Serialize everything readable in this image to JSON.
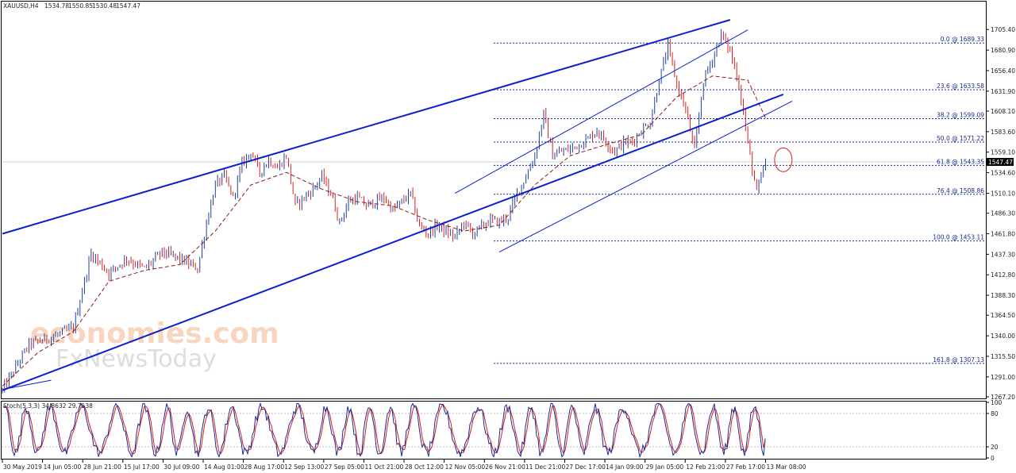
{
  "header": {
    "symbol": "XAUUSD,H4",
    "open": "1534.78",
    "high": "1550.85",
    "low": "1530.48",
    "close": "1547.47"
  },
  "colors": {
    "background": "#ffffff",
    "candle_up": "#1f3f9f",
    "candle_down": "#d42020",
    "moving_average": "#8b1a1a",
    "channel": "#0a1fd0",
    "fib_level": "#1a2a8a",
    "stoch_main": "#1b2a8f",
    "stoch_signal": "#d42020",
    "current_price_tag": "#000000",
    "watermark": "#f4b48a",
    "watermark_sub": "#c8c8c8"
  },
  "watermark": {
    "line1": "economies.com",
    "line2": "FxNewsToday"
  },
  "chart_data": [
    {
      "type": "candlestick",
      "title": "XAUUSD,H4",
      "ylim": [
        1267.2,
        1717.0
      ],
      "y_ticks": [
        "1705.40",
        "1680.90",
        "1656.40",
        "1631.90",
        "1608.10",
        "1583.60",
        "1559.10",
        "1534.60",
        "1510.10",
        "1486.30",
        "1461.80",
        "1437.30",
        "1412.80",
        "1388.30",
        "1364.50",
        "1340.00",
        "1315.50",
        "1291.00",
        "1267.20"
      ],
      "current_price": "1547.47",
      "x_ticks": [
        "30 May 2019",
        "14 Jun 05:00",
        "28 Jun 21:00",
        "15 Jul 17:00",
        "30 Jul 09:00",
        "14 Aug 01:00",
        "28 Aug 17:00",
        "12 Sep 13:00",
        "27 Sep 05:00",
        "11 Oct 21:00",
        "28 Oct 12:00",
        "12 Nov 05:00",
        "26 Nov 21:00",
        "11 Dec 21:00",
        "27 Dec 17:00",
        "14 Jan 09:00",
        "29 Jan 05:00",
        "12 Feb 21:00",
        "27 Feb 17:00",
        "13 Mar 08:00"
      ],
      "price_path": [
        [
          0,
          1275
        ],
        [
          3,
          1330
        ],
        [
          6,
          1340
        ],
        [
          8,
          1350
        ],
        [
          10,
          1438
        ],
        [
          12,
          1415
        ],
        [
          14,
          1432
        ],
        [
          16,
          1420
        ],
        [
          18,
          1440
        ],
        [
          20,
          1432
        ],
        [
          22,
          1420
        ],
        [
          23,
          1475
        ],
        [
          24,
          1520
        ],
        [
          25,
          1530
        ],
        [
          26,
          1505
        ],
        [
          27,
          1545
        ],
        [
          28,
          1560
        ],
        [
          29,
          1535
        ],
        [
          30,
          1550
        ],
        [
          31,
          1540
        ],
        [
          32,
          1555
        ],
        [
          33,
          1495
        ],
        [
          34,
          1505
        ],
        [
          35,
          1515
        ],
        [
          36,
          1530
        ],
        [
          37,
          1510
        ],
        [
          38,
          1475
        ],
        [
          39,
          1500
        ],
        [
          40,
          1505
        ],
        [
          41,
          1495
        ],
        [
          42,
          1500
        ],
        [
          43,
          1505
        ],
        [
          44,
          1490
        ],
        [
          45,
          1500
        ],
        [
          46,
          1510
        ],
        [
          47,
          1470
        ],
        [
          48,
          1462
        ],
        [
          49,
          1472
        ],
        [
          50,
          1464
        ],
        [
          51,
          1458
        ],
        [
          52,
          1475
        ],
        [
          53,
          1462
        ],
        [
          54,
          1470
        ],
        [
          55,
          1478
        ],
        [
          56,
          1476
        ],
        [
          57,
          1482
        ],
        [
          58,
          1510
        ],
        [
          59,
          1530
        ],
        [
          60,
          1555
        ],
        [
          61,
          1605
        ],
        [
          62,
          1555
        ],
        [
          63,
          1560
        ],
        [
          64,
          1563
        ],
        [
          65,
          1568
        ],
        [
          66,
          1575
        ],
        [
          67,
          1585
        ],
        [
          68,
          1572
        ],
        [
          69,
          1560
        ],
        [
          70,
          1570
        ],
        [
          71,
          1572
        ],
        [
          72,
          1585
        ],
        [
          73,
          1595
        ],
        [
          74,
          1645
        ],
        [
          75,
          1685
        ],
        [
          76,
          1640
        ],
        [
          77,
          1610
        ],
        [
          78,
          1560
        ],
        [
          79,
          1645
        ],
        [
          80,
          1670
        ],
        [
          81,
          1700
        ],
        [
          82,
          1680
        ],
        [
          83,
          1640
        ],
        [
          84,
          1570
        ],
        [
          85,
          1510
        ],
        [
          86,
          1547
        ]
      ],
      "moving_average_path": [
        [
          0,
          1280
        ],
        [
          4,
          1320
        ],
        [
          8,
          1345
        ],
        [
          12,
          1405
        ],
        [
          16,
          1418
        ],
        [
          20,
          1425
        ],
        [
          24,
          1465
        ],
        [
          28,
          1520
        ],
        [
          32,
          1535
        ],
        [
          36,
          1515
        ],
        [
          40,
          1500
        ],
        [
          44,
          1495
        ],
        [
          48,
          1478
        ],
        [
          52,
          1465
        ],
        [
          56,
          1472
        ],
        [
          60,
          1520
        ],
        [
          64,
          1555
        ],
        [
          68,
          1568
        ],
        [
          72,
          1580
        ],
        [
          76,
          1625
        ],
        [
          80,
          1650
        ],
        [
          84,
          1645
        ],
        [
          86,
          1600
        ]
      ],
      "channels": [
        {
          "name": "main-channel-upper",
          "from": [
            0,
            1461.8
          ],
          "to": [
            82,
            1717.0
          ]
        },
        {
          "name": "main-channel-lower",
          "from": [
            0,
            1275.0
          ],
          "to": [
            88,
            1628.0
          ]
        },
        {
          "name": "inner-channel-upper",
          "from": [
            51,
            1510.0
          ],
          "to": [
            84,
            1705.0
          ]
        },
        {
          "name": "inner-channel-lower",
          "from": [
            56,
            1440.0
          ],
          "to": [
            89,
            1620.0
          ]
        },
        {
          "name": "start-trend",
          "from": [
            0,
            1276.0
          ],
          "to": [
            5.5,
            1287.0
          ]
        }
      ],
      "fibonacci": [
        {
          "label": "0.0 @ 1689.33",
          "price": 1689.33
        },
        {
          "label": "23.6 @ 1633.58",
          "price": 1633.58
        },
        {
          "label": "38.2 @ 1599.09",
          "price": 1599.09
        },
        {
          "label": "50.0 @ 1571.22",
          "price": 1571.22
        },
        {
          "label": "61.8 @ 1543.35",
          "price": 1543.35
        },
        {
          "label": "76.4 @ 1508.86",
          "price": 1508.86
        },
        {
          "label": "100.0 @ 1453.11",
          "price": 1453.11
        },
        {
          "label": "161.8 @ 1307.13",
          "price": 1307.13
        }
      ],
      "highlight_circle": {
        "x": 88,
        "price": 1550
      }
    },
    {
      "type": "line",
      "title": "Stoch(5,3,3) 34.8632 29.7538",
      "ylim": [
        0,
        100
      ],
      "y_ticks": [
        "100",
        "80",
        "20",
        "0"
      ],
      "levels": [
        80,
        20
      ],
      "series": [
        {
          "name": "Main",
          "value": 34.8632
        },
        {
          "name": "Signal",
          "value": 29.7538
        }
      ]
    }
  ]
}
